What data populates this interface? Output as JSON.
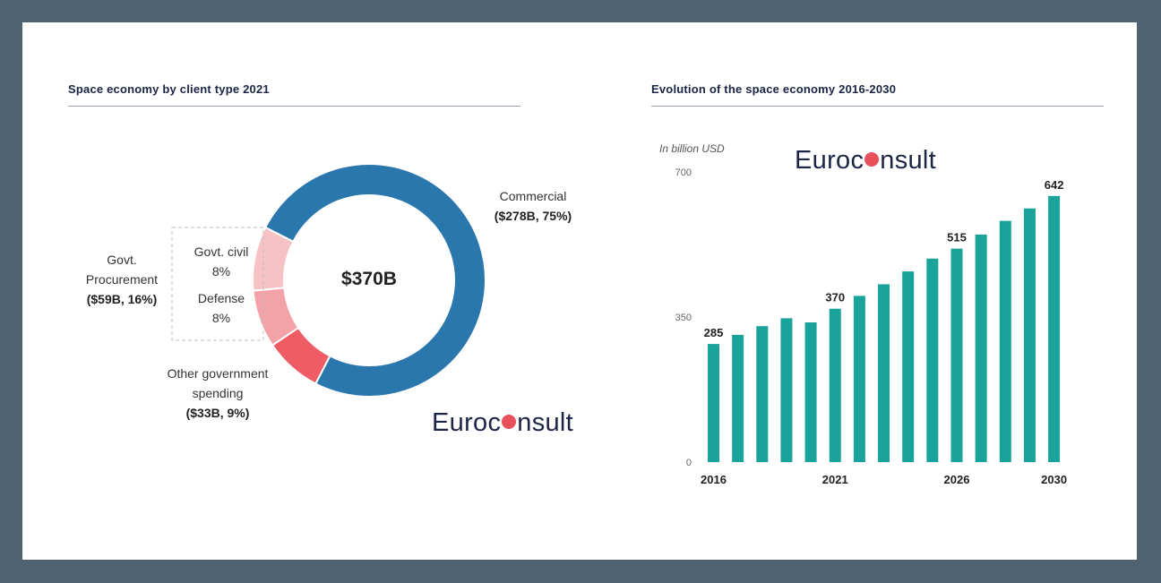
{
  "chart_data": [
    {
      "type": "pie",
      "style": "donut",
      "title": "Space economy by client type 2021",
      "center_label": "$370B",
      "slices": [
        {
          "name": "Commercial",
          "value": 278,
          "percent": 75,
          "color": "#2a77ad"
        },
        {
          "name": "Govt. civil",
          "value": 29.6,
          "percent": 8,
          "color": "#ef5c66"
        },
        {
          "name": "Defense",
          "value": 29.6,
          "percent": 8,
          "color": "#f3a3a8"
        },
        {
          "name": "Other government spending",
          "value": 33,
          "percent": 9,
          "color": "#f7c2c4"
        }
      ],
      "labels": {
        "commercial_name": "Commercial",
        "commercial_value": "($278B, 75%)",
        "govt_civil_name": "Govt. civil",
        "govt_civil_pct": "8%",
        "defense_name": "Defense",
        "defense_pct": "8%",
        "other_line1": "Other government",
        "other_line2": "spending",
        "other_value": "($33B, 9%)",
        "procurement_line1": "Govt.",
        "procurement_line2": "Procurement",
        "procurement_value": "($59B, 16%)"
      }
    },
    {
      "type": "bar",
      "title": "Evolution of the space economy 2016-2030",
      "ylabel": "In billion USD",
      "ylim": [
        0,
        700
      ],
      "yticks": [
        0,
        350,
        700
      ],
      "categories": [
        2016,
        2017,
        2018,
        2019,
        2020,
        2021,
        2022,
        2023,
        2024,
        2025,
        2026,
        2027,
        2028,
        2029,
        2030
      ],
      "values": [
        285,
        307,
        328,
        347,
        337,
        370,
        401,
        429,
        460,
        491,
        515,
        549,
        582,
        612,
        642
      ],
      "value_labels": {
        "2016": "285",
        "2021": "370",
        "2026": "515",
        "2030": "642"
      },
      "x_tick_labels": {
        "2016": "2016",
        "2021": "2021",
        "2026": "2026",
        "2030": "2030"
      },
      "color": "#1aa39a"
    }
  ],
  "brand": {
    "before": "Euroc",
    "after": "nsult",
    "dot_color": "#e8505b"
  }
}
